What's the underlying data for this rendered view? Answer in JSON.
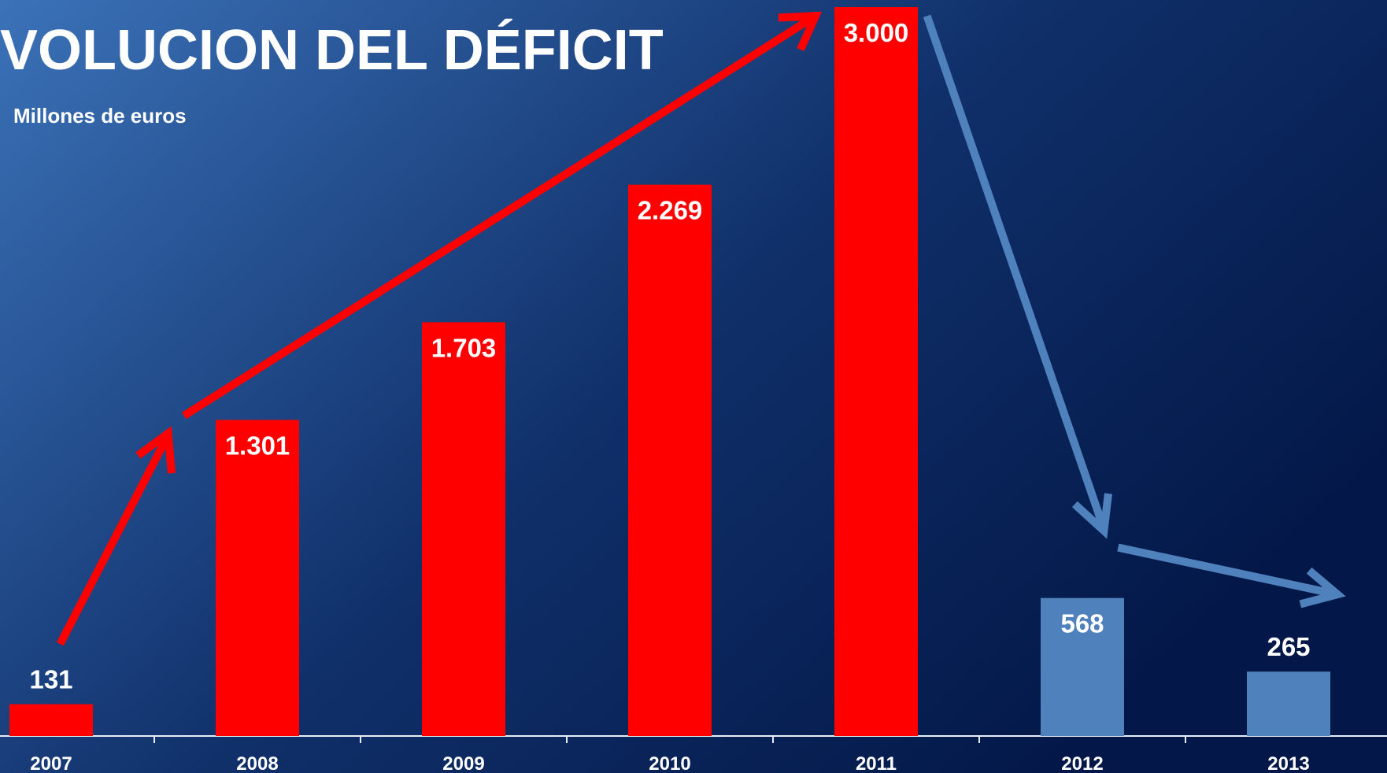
{
  "chart_data": {
    "type": "bar",
    "title": "VOLUCION DEL DÉFICIT",
    "subtitle": "Millones de euros",
    "categories": [
      "2007",
      "2008",
      "2009",
      "2010",
      "2011",
      "2012",
      "2013"
    ],
    "values": [
      131,
      1301,
      1703,
      2269,
      3000,
      568,
      265
    ],
    "value_labels": [
      "131",
      "1.301",
      "1.703",
      "2.269",
      "3.000",
      "568",
      "265"
    ],
    "colors": [
      "#ff0000",
      "#ff0000",
      "#ff0000",
      "#ff0000",
      "#ff0000",
      "#4f81bd",
      "#4f81bd"
    ]
  }
}
